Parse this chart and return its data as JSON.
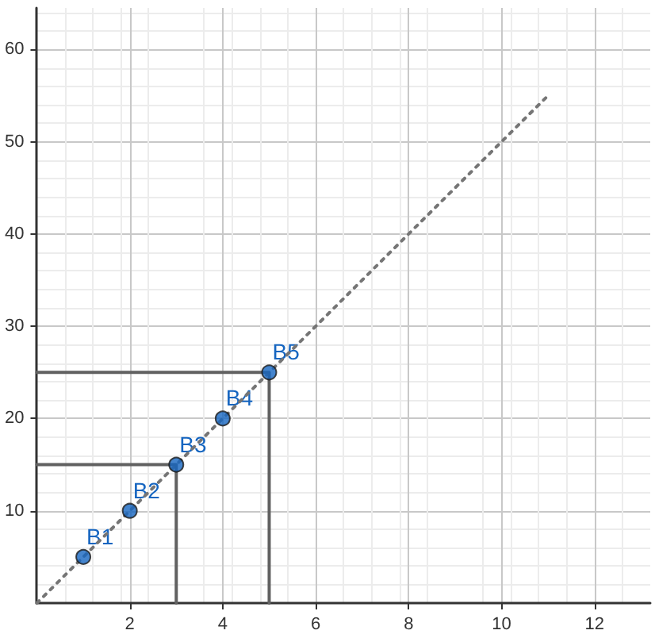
{
  "chart_data": {
    "type": "scatter",
    "xlim": [
      0,
      13.2
    ],
    "ylim": [
      0,
      64.5
    ],
    "xticks": [
      2,
      4,
      6,
      8,
      10,
      12
    ],
    "yticks": [
      10,
      20,
      30,
      40,
      50,
      60
    ],
    "grid": true,
    "series": [
      {
        "type": "line",
        "x": [
          0,
          11
        ],
        "values": [
          0,
          55
        ],
        "color": "#757575",
        "line_style": "dotted",
        "marker": "none"
      },
      {
        "type": "line",
        "x": [
          0,
          5,
          5
        ],
        "values": [
          25,
          25,
          0
        ],
        "color": "#616161",
        "line_style": "solid",
        "marker": "none"
      },
      {
        "type": "line",
        "x": [
          0,
          3,
          3
        ],
        "values": [
          15,
          15,
          0
        ],
        "color": "#616161",
        "line_style": "solid",
        "marker": "none"
      },
      {
        "type": "scatter",
        "x": [
          1,
          2,
          3,
          4,
          5
        ],
        "values": [
          5,
          10,
          15,
          20,
          25
        ],
        "color": "#1565c0",
        "marker": "circle"
      }
    ],
    "annotations": [
      {
        "text": "B1",
        "x": 1,
        "y": 5
      },
      {
        "text": "B2",
        "x": 2,
        "y": 10
      },
      {
        "text": "B3",
        "x": 3,
        "y": 15
      },
      {
        "text": "B4",
        "x": 4,
        "y": 20
      },
      {
        "text": "B5",
        "x": 5,
        "y": 25
      }
    ]
  }
}
